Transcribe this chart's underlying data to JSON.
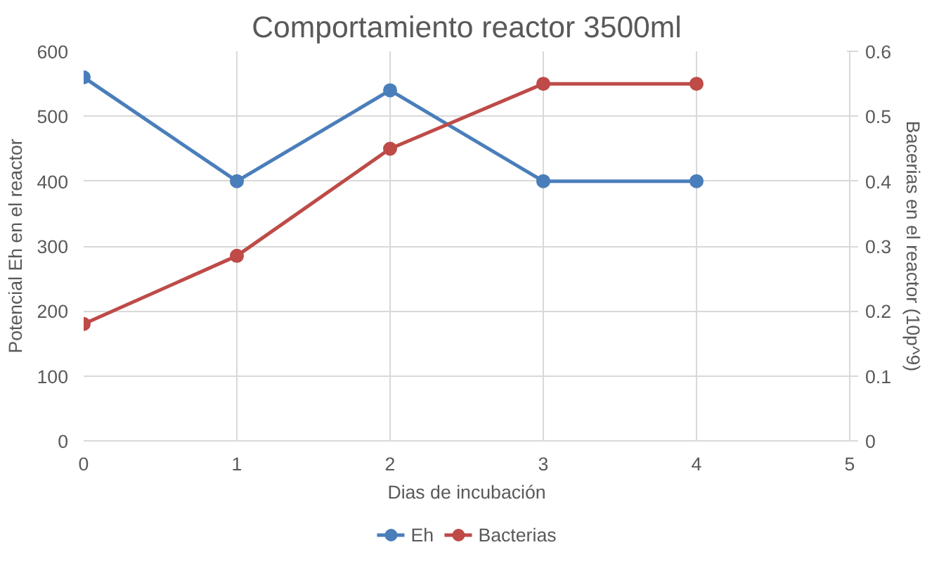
{
  "chart_data": {
    "type": "line",
    "title": "Comportamiento reactor 3500ml",
    "xlabel": "Dias de incubación",
    "ylabel": "Potencial Eh en el reactor",
    "y2label": "Bacerias en el reactor (10p^9)",
    "x": [
      0,
      1,
      2,
      3,
      4
    ],
    "series": [
      {
        "name": "Eh",
        "color": "#4a7ebb",
        "values": [
          560,
          400,
          540,
          400,
          400
        ]
      },
      {
        "name": "Bacterias",
        "color": "#be4b48",
        "values": [
          0.18,
          0.285,
          0.45,
          0.55,
          0.55
        ],
        "axis": "y2"
      }
    ],
    "xlim": [
      0,
      5
    ],
    "xticks": [
      0,
      1,
      2,
      3,
      4,
      5
    ],
    "ylim": [
      0,
      600
    ],
    "yticks": [
      0,
      100,
      200,
      300,
      400,
      500,
      600
    ],
    "y2lim": [
      0,
      0.6
    ],
    "y2ticks": [
      0,
      0.1,
      0.2,
      0.3,
      0.4,
      0.5,
      0.6
    ],
    "grid": true,
    "legend": "bottom",
    "marker": "circle",
    "line_style": "solid"
  }
}
